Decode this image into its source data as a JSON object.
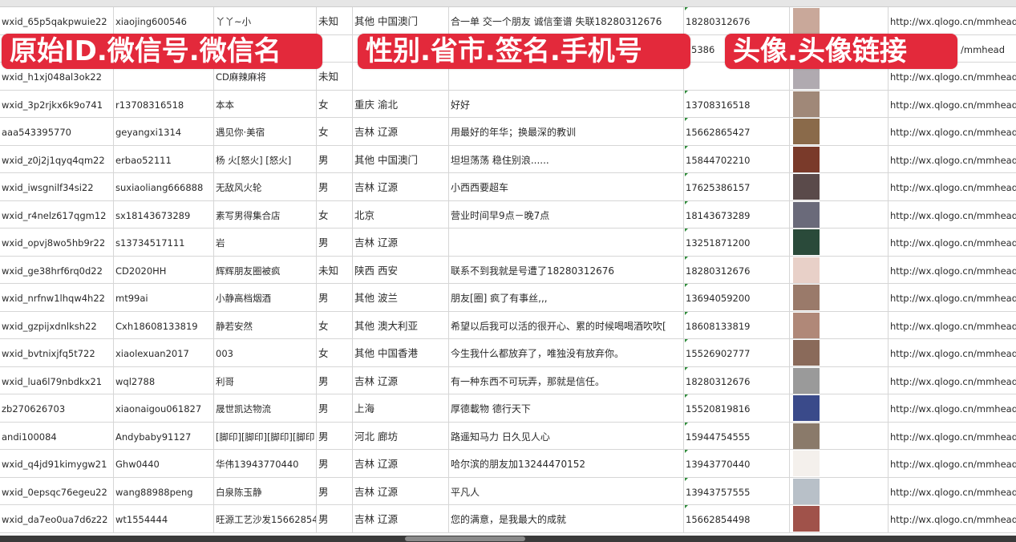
{
  "banners": [
    "原始ID.微信号.微信名",
    "性别.省市.签名.手机号",
    "头像.头像链接"
  ],
  "colors": {
    "banner": "#e3293b",
    "grid": "#d6d6d6"
  },
  "rows": [
    {
      "id": "wxid_65p5qakpwuie22",
      "wechat": "xiaojing600546",
      "name": "丫丫~小",
      "gender": "未知",
      "region": "其他 中国澳门",
      "signature": "合一单 交一个朋友 诚信奎谱 失联18280312676",
      "phone": "18280312676",
      "avatar": "#c9a89a",
      "link": "http://wx.qlogo.cn/mmhead"
    },
    {
      "id": "",
      "wechat": "",
      "name": "",
      "gender": "",
      "region": "",
      "signature": "",
      "phone": "5386",
      "avatar": "#4a5b8a",
      "link": "/mmhead"
    },
    {
      "id": "wxid_h1xj048al3ok22",
      "wechat": "",
      "name": "CD麻辣麻将",
      "gender": "未知",
      "region": "",
      "signature": "",
      "phone": "",
      "avatar": "#b0aab0",
      "link": "http://wx.qlogo.cn/mmhead"
    },
    {
      "id": "wxid_3p2rjkx6k9o741",
      "wechat": "r13708316518",
      "name": "本本",
      "gender": "女",
      "region": "重庆 渝北",
      "signature": "好好",
      "phone": "13708316518",
      "avatar": "#a08878",
      "link": "http://wx.qlogo.cn/mmhead"
    },
    {
      "id": "aaa543395770",
      "wechat": "geyangxi1314",
      "name": "遇见你·美宿",
      "gender": "女",
      "region": "吉林 辽源",
      "signature": "用最好的年华；换最深的教训",
      "phone": "15662865427",
      "avatar": "#8a6a4a",
      "link": "http://wx.qlogo.cn/mmhead"
    },
    {
      "id": "wxid_z0j2j1qyq4qm22",
      "wechat": "erbao52111",
      "name": "杨 火[怒火] [怒火]",
      "gender": "男",
      "region": "其他 中国澳门",
      "signature": "坦坦荡荡 稳住别浪......",
      "phone": "15844702210",
      "avatar": "#7a3a2a",
      "link": "http://wx.qlogo.cn/mmhead"
    },
    {
      "id": "wxid_iwsgnilf34si22",
      "wechat": "suxiaoliang666888",
      "name": "无敌风火轮",
      "gender": "男",
      "region": "吉林 辽源",
      "signature": "小西西要超车",
      "phone": "17625386157",
      "avatar": "#5a4a4a",
      "link": "http://wx.qlogo.cn/mmhead"
    },
    {
      "id": "wxid_r4nelz617qgm12",
      "wechat": "sx18143673289",
      "name": "素写男得集合店",
      "gender": "女",
      "region": "北京",
      "signature": "营业时间早9点－晚7点",
      "phone": "18143673289",
      "avatar": "#6a6a7a",
      "link": "http://wx.qlogo.cn/mmhead"
    },
    {
      "id": "wxid_opvj8wo5hb9r22",
      "wechat": "s13734517111",
      "name": "岩",
      "gender": "男",
      "region": "吉林 辽源",
      "signature": "",
      "phone": "13251871200",
      "avatar": "#2a4a3a",
      "link": "http://wx.qlogo.cn/mmhead"
    },
    {
      "id": "wxid_ge38hrf6rq0d22",
      "wechat": "CD2020HH",
      "name": "辉辉朋友圈被疯",
      "gender": "未知",
      "region": "陕西 西安",
      "signature": "联系不到我就是号遭了18280312676",
      "phone": "18280312676",
      "avatar": "#e8d0c8",
      "link": "http://wx.qlogo.cn/mmhead"
    },
    {
      "id": "wxid_nrfnw1lhqw4h22",
      "wechat": "mt99ai",
      "name": "小静高档烟酒",
      "gender": "男",
      "region": "其他 波兰",
      "signature": "朋友[圈] 疯了有事丝,,,",
      "phone": "13694059200",
      "avatar": "#9a7a6a",
      "link": "http://wx.qlogo.cn/mmhead"
    },
    {
      "id": "wxid_gzpijxdnlksh22",
      "wechat": "Cxh18608133819",
      "name": "静若安然",
      "gender": "女",
      "region": "其他 澳大利亚",
      "signature": "希望以后我可以活的很开心、累的时候喝喝酒吹吹[",
      "phone": "18608133819",
      "avatar": "#b08878",
      "link": "http://wx.qlogo.cn/mmhead"
    },
    {
      "id": "wxid_bvtnixjfq5t722",
      "wechat": "xiaolexuan2017",
      "name": "003",
      "gender": "女",
      "region": "其他 中国香港",
      "signature": "今生我什么都放弃了，唯独没有放弃你。",
      "phone": "15526902777",
      "avatar": "#8a6a5a",
      "link": "http://wx.qlogo.cn/mmhead"
    },
    {
      "id": "wxid_lua6l79nbdkx21",
      "wechat": "wql2788",
      "name": "利哥",
      "gender": "男",
      "region": "吉林 辽源",
      "signature": "有一种东西不可玩弄，那就是信任。",
      "phone": "18280312676",
      "avatar": "#9a9a9a",
      "link": "http://wx.qlogo.cn/mmhead"
    },
    {
      "id": "zb270626703",
      "wechat": "xiaonaigou061827",
      "name": "晟世凯达物流",
      "gender": "男",
      "region": "上海",
      "signature": "厚德載物 德行天下",
      "phone": "15520819816",
      "avatar": "#3a4a8a",
      "link": "http://wx.qlogo.cn/mmhead"
    },
    {
      "id": "andi100084",
      "wechat": "Andybaby91127",
      "name": "[脚印][脚印][脚印][脚印",
      "gender": "男",
      "region": "河北 廊坊",
      "signature": "路遥知马力 日久见人心",
      "phone": "15944754555",
      "avatar": "#8a7a6a",
      "link": "http://wx.qlogo.cn/mmhead"
    },
    {
      "id": "wxid_q4jd91kimygw21",
      "wechat": "Ghw0440",
      "name": "华伟13943770440",
      "gender": "男",
      "region": "吉林 辽源",
      "signature": "哈尔滨的朋友加13244470152",
      "phone": "13943770440",
      "avatar": "#f4f0ec",
      "link": "http://wx.qlogo.cn/mmhead"
    },
    {
      "id": "wxid_0epsqc76egeu22",
      "wechat": "wang88988peng",
      "name": "白泉陈玉静",
      "gender": "男",
      "region": "吉林 辽源",
      "signature": "平凡人",
      "phone": "13943757555",
      "avatar": "#b8c0c8",
      "link": "http://wx.qlogo.cn/mmhead"
    },
    {
      "id": "wxid_da7eo0ua7d6z22",
      "wechat": "wt1554444",
      "name": "旺源工艺沙发15662854",
      "gender": "男",
      "region": "吉林 辽源",
      "signature": "您的满意，是我最大的成就",
      "phone": "15662854498",
      "avatar": "#a0524a",
      "link": "http://wx.qlogo.cn/mmhead"
    }
  ]
}
